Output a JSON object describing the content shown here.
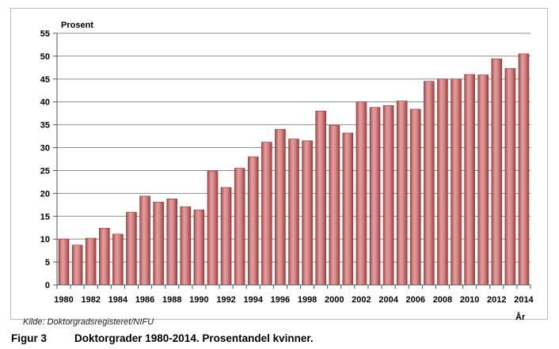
{
  "chart_data": {
    "type": "bar",
    "ylabel": "Prosent",
    "xlabel": "År",
    "ylim": [
      0,
      55
    ],
    "yticks": [
      0,
      5,
      10,
      15,
      20,
      25,
      30,
      35,
      40,
      45,
      50,
      55
    ],
    "grid": true,
    "bar_color": "#c96a6a",
    "categories": [
      "1980",
      "1981",
      "1982",
      "1983",
      "1984",
      "1985",
      "1986",
      "1987",
      "1988",
      "1989",
      "1990",
      "1991",
      "1992",
      "1993",
      "1994",
      "1995",
      "1996",
      "1997",
      "1998",
      "1999",
      "2000",
      "2001",
      "2002",
      "2003",
      "2004",
      "2005",
      "2006",
      "2007",
      "2008",
      "2009",
      "2010",
      "2011",
      "2012",
      "2013",
      "2014"
    ],
    "x_tick_labels": [
      "1980",
      "1982",
      "1984",
      "1986",
      "1988",
      "1990",
      "1992",
      "1994",
      "1996",
      "1998",
      "2000",
      "2002",
      "2004",
      "2006",
      "2008",
      "2010",
      "2012",
      "2014"
    ],
    "values": [
      10.0,
      8.7,
      10.2,
      12.4,
      11.1,
      15.9,
      19.4,
      18.1,
      18.8,
      17.1,
      16.4,
      24.9,
      21.3,
      25.5,
      28.0,
      31.2,
      34.0,
      31.9,
      31.5,
      38.0,
      34.9,
      33.2,
      40.0,
      38.8,
      39.2,
      40.2,
      38.4,
      44.5,
      45.0,
      45.0,
      46.0,
      45.9,
      49.4,
      47.3,
      50.5
    ]
  },
  "source_note": "Kilde:  Doktorgradsregisteret/NIFU",
  "caption": {
    "number": "Figur 3",
    "text": "Doktorgrader 1980-2014. Prosentandel kvinner."
  }
}
